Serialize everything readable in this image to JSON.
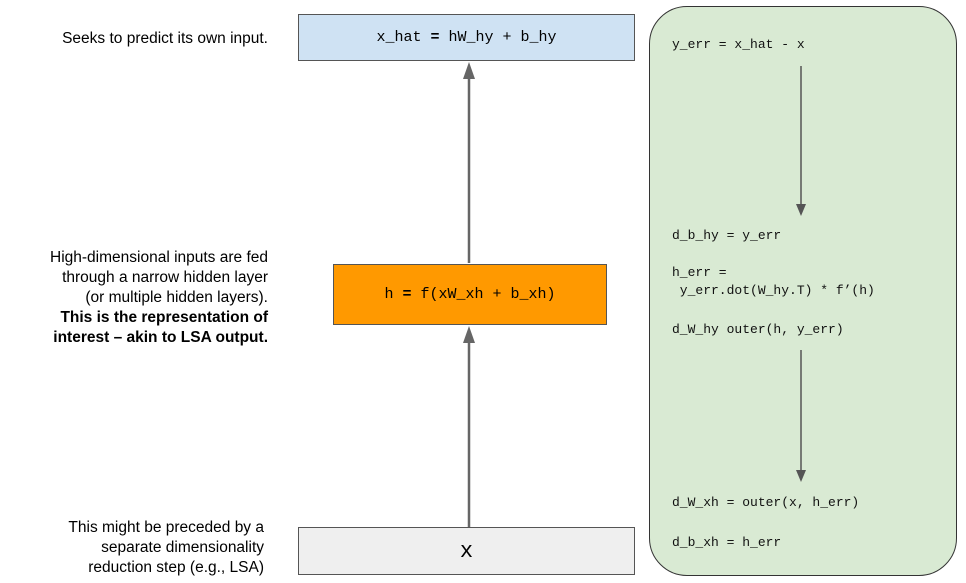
{
  "notes": {
    "top": "Seeks to predict its own input.",
    "middle_lines": [
      "High-dimensional inputs are fed",
      "through a narrow hidden layer",
      "(or multiple hidden layers)."
    ],
    "middle_bold_lines": [
      "This is the representation of",
      "interest – akin to LSA output."
    ],
    "bottom_lines": [
      "This might be preceded by a",
      "separate dimensionality",
      "reduction step (e.g., LSA)"
    ]
  },
  "boxes": {
    "output": {
      "left": "x_hat",
      "op": "=",
      "right": "hW_hy + b_hy",
      "color": "#cfe2f3"
    },
    "hidden": {
      "left": "h",
      "op": "=",
      "right": "f(xW_xh + b_xh)",
      "color": "#ff9900"
    },
    "input": {
      "label": "x",
      "color": "#efefef"
    }
  },
  "panel": {
    "color": "#d9ead3",
    "lines": {
      "y_err": "y_err = x_hat - x",
      "d_b_hy": "d_b_hy = y_err",
      "h_err_1": "h_err =",
      "h_err_2": " y_err.dot(W_hy.T) * f’(h)",
      "d_W_hy": "d_W_hy outer(h, y_err)",
      "d_W_xh": "d_W_xh = outer(x, h_err)",
      "d_b_xh": "d_b_xh = h_err"
    }
  }
}
